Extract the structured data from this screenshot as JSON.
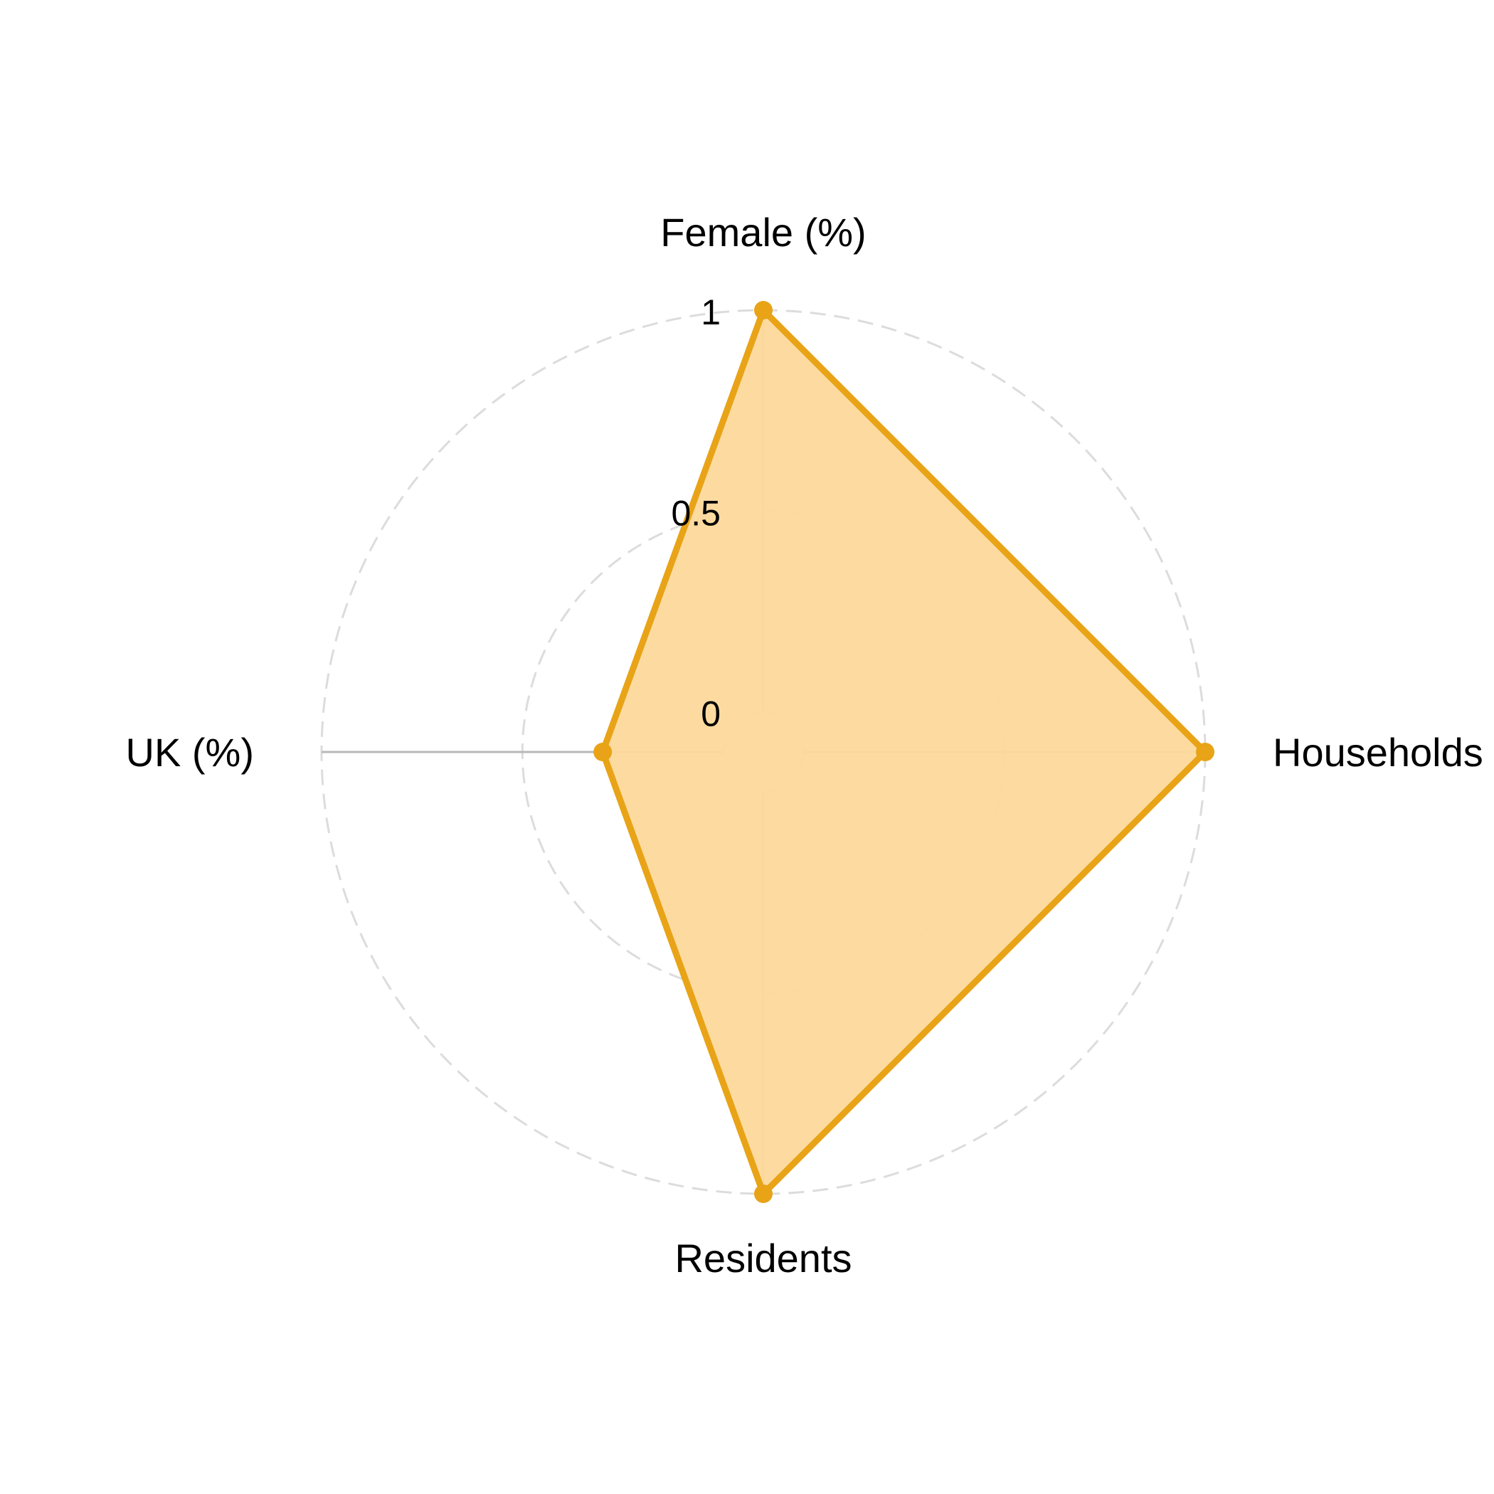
{
  "chart_data": {
    "type": "radar",
    "axes": [
      "Female (%)",
      "Households",
      "Residents",
      "UK (%)"
    ],
    "rlim": [
      -0.1,
      1.0
    ],
    "ticks": [
      0,
      0.5,
      1
    ],
    "tick_labels": [
      "0",
      "0.5",
      "1"
    ],
    "grid": true,
    "grid_style": "dashed",
    "series": [
      {
        "values": [
          1.0,
          1.0,
          1.0,
          0.3
        ],
        "color": "#E8A317",
        "fill": "#FDD99B"
      }
    ]
  }
}
